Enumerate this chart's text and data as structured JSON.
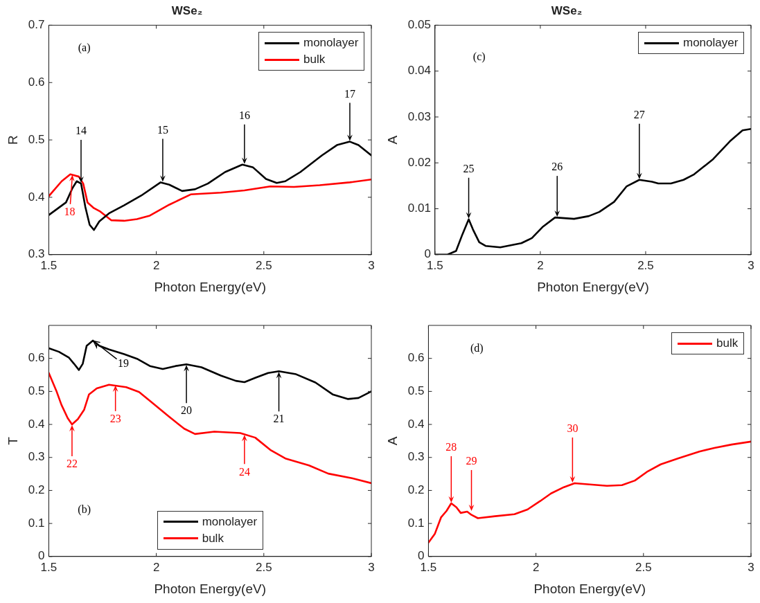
{
  "chart_data": [
    {
      "type": "line",
      "title": "WSe₂",
      "xlabel": "Photon Energy(eV)",
      "ylabel": "R",
      "xlim": [
        1.5,
        3
      ],
      "ylim": [
        0.3,
        0.7
      ],
      "xticks": [
        1.5,
        2,
        2.5,
        3
      ],
      "yticks": [
        0.3,
        0.4,
        0.5,
        0.6,
        0.7
      ],
      "legend": "top right",
      "series": [
        {
          "name": "monolayer",
          "color": "#000000",
          "x": [
            1.5,
            1.58,
            1.61,
            1.63,
            1.65,
            1.67,
            1.69,
            1.71,
            1.735,
            1.78,
            1.85,
            1.93,
            2.02,
            2.06,
            2.12,
            2.18,
            2.24,
            2.32,
            2.4,
            2.45,
            2.51,
            2.56,
            2.6,
            2.67,
            2.77,
            2.84,
            2.9,
            2.94,
            3.0
          ],
          "values": [
            0.369,
            0.391,
            0.416,
            0.428,
            0.424,
            0.383,
            0.352,
            0.343,
            0.358,
            0.372,
            0.386,
            0.403,
            0.426,
            0.422,
            0.411,
            0.414,
            0.424,
            0.444,
            0.457,
            0.452,
            0.432,
            0.425,
            0.428,
            0.444,
            0.473,
            0.491,
            0.497,
            0.491,
            0.473
          ]
        },
        {
          "name": "bulk",
          "color": "#ff0000",
          "x": [
            1.5,
            1.56,
            1.6,
            1.64,
            1.66,
            1.68,
            1.71,
            1.74,
            1.79,
            1.85,
            1.91,
            1.97,
            2.06,
            2.16,
            2.3,
            2.41,
            2.53,
            2.64,
            2.76,
            2.9,
            3.0
          ],
          "values": [
            0.402,
            0.428,
            0.44,
            0.436,
            0.424,
            0.391,
            0.381,
            0.375,
            0.36,
            0.359,
            0.362,
            0.368,
            0.387,
            0.405,
            0.408,
            0.412,
            0.419,
            0.418,
            0.421,
            0.426,
            0.431
          ]
        }
      ],
      "annotations": [
        "(a)",
        {
          "text": "14",
          "x": 1.65,
          "y": 0.424
        },
        {
          "text": "15",
          "x": 2.03,
          "y": 0.426
        },
        {
          "text": "16",
          "x": 2.41,
          "y": 0.457
        },
        {
          "text": "17",
          "x": 2.9,
          "y": 0.497
        },
        {
          "text": "18",
          "x": 1.61,
          "y": 0.44
        }
      ]
    },
    {
      "type": "line",
      "title": "WSe₂",
      "xlabel": "Photon Energy(eV)",
      "ylabel": "A",
      "xlim": [
        1.5,
        3
      ],
      "ylim": [
        0,
        0.05
      ],
      "xticks": [
        1.5,
        2,
        2.5,
        3
      ],
      "yticks": [
        0,
        0.01,
        0.02,
        0.03,
        0.04,
        0.05
      ],
      "legend": "top right",
      "series": [
        {
          "name": "monolayer",
          "color": "#000000",
          "x": [
            1.5,
            1.56,
            1.6,
            1.63,
            1.66,
            1.68,
            1.71,
            1.74,
            1.81,
            1.91,
            1.96,
            2.01,
            2.07,
            2.16,
            2.23,
            2.28,
            2.35,
            2.41,
            2.47,
            2.53,
            2.56,
            2.62,
            2.68,
            2.73,
            2.82,
            2.9,
            2.96,
            3.0
          ],
          "values": [
            0,
            0,
            0.0008,
            0.0044,
            0.0077,
            0.0055,
            0.0027,
            0.0019,
            0.0016,
            0.0025,
            0.0036,
            0.006,
            0.0081,
            0.0078,
            0.0084,
            0.0093,
            0.0115,
            0.0149,
            0.0163,
            0.0159,
            0.0155,
            0.0155,
            0.0163,
            0.0175,
            0.0208,
            0.0247,
            0.0271,
            0.0274
          ]
        }
      ],
      "annotations": [
        "(c)",
        {
          "text": "25",
          "x": 1.66,
          "y": 0.0077
        },
        {
          "text": "26",
          "x": 2.08,
          "y": 0.0081
        },
        {
          "text": "27",
          "x": 2.47,
          "y": 0.0163
        }
      ]
    },
    {
      "type": "line",
      "xlabel": "Photon Energy(eV)",
      "ylabel": "T",
      "xlim": [
        1.5,
        3
      ],
      "ylim": [
        0,
        0.7
      ],
      "xticks": [
        1.5,
        2,
        2.5,
        3
      ],
      "yticks": [
        0,
        0.1,
        0.2,
        0.3,
        0.4,
        0.5,
        0.6
      ],
      "legend": "bottom",
      "series": [
        {
          "name": "monolayer",
          "color": "#000000",
          "x": [
            1.5,
            1.547,
            1.594,
            1.617,
            1.64,
            1.658,
            1.676,
            1.705,
            1.735,
            1.78,
            1.85,
            1.91,
            1.97,
            2.03,
            2.09,
            2.14,
            2.21,
            2.3,
            2.37,
            2.41,
            2.46,
            2.52,
            2.57,
            2.65,
            2.74,
            2.82,
            2.89,
            2.94,
            3.0
          ],
          "values": [
            0.631,
            0.62,
            0.602,
            0.584,
            0.565,
            0.584,
            0.638,
            0.654,
            0.638,
            0.627,
            0.613,
            0.599,
            0.577,
            0.568,
            0.577,
            0.582,
            0.573,
            0.548,
            0.532,
            0.528,
            0.541,
            0.556,
            0.561,
            0.552,
            0.527,
            0.491,
            0.477,
            0.48,
            0.5
          ]
        },
        {
          "name": "bulk",
          "color": "#ff0000",
          "x": [
            1.5,
            1.535,
            1.559,
            1.588,
            1.608,
            1.635,
            1.664,
            1.687,
            1.723,
            1.78,
            1.86,
            1.92,
            1.98,
            2.06,
            2.13,
            2.18,
            2.27,
            2.39,
            2.46,
            2.53,
            2.6,
            2.71,
            2.8,
            2.91,
            3.0
          ],
          "values": [
            0.556,
            0.502,
            0.459,
            0.419,
            0.4,
            0.416,
            0.444,
            0.491,
            0.509,
            0.52,
            0.513,
            0.498,
            0.466,
            0.423,
            0.387,
            0.371,
            0.378,
            0.374,
            0.36,
            0.323,
            0.297,
            0.276,
            0.251,
            0.237,
            0.222
          ]
        }
      ],
      "annotations": [
        "(b)",
        {
          "text": "19",
          "x": 1.705,
          "y": 0.654
        },
        {
          "text": "20",
          "x": 2.14,
          "y": 0.582
        },
        {
          "text": "21",
          "x": 2.57,
          "y": 0.561
        },
        {
          "text": "22",
          "x": 1.608,
          "y": 0.4
        },
        {
          "text": "23",
          "x": 1.81,
          "y": 0.52
        },
        {
          "text": "24",
          "x": 2.41,
          "y": 0.37
        }
      ]
    },
    {
      "type": "line",
      "xlabel": "Photon Energy(eV)",
      "ylabel": "A",
      "xlim": [
        1.5,
        3
      ],
      "ylim": [
        0,
        0.7
      ],
      "xticks": [
        1.5,
        2,
        2.5,
        3
      ],
      "yticks": [
        0,
        0.1,
        0.2,
        0.3,
        0.4,
        0.5,
        0.6
      ],
      "legend": "top right",
      "series": [
        {
          "name": "bulk",
          "color": "#ff0000",
          "x": [
            1.5,
            1.53,
            1.559,
            1.584,
            1.606,
            1.63,
            1.65,
            1.68,
            1.7,
            1.73,
            1.81,
            1.9,
            1.96,
            2.02,
            2.07,
            2.13,
            2.18,
            2.27,
            2.33,
            2.4,
            2.46,
            2.52,
            2.58,
            2.66,
            2.76,
            2.83,
            2.91,
            3.0
          ],
          "values": [
            0.042,
            0.069,
            0.119,
            0.138,
            0.161,
            0.149,
            0.132,
            0.136,
            0.126,
            0.116,
            0.122,
            0.128,
            0.142,
            0.168,
            0.191,
            0.21,
            0.222,
            0.217,
            0.214,
            0.216,
            0.23,
            0.258,
            0.279,
            0.297,
            0.318,
            0.329,
            0.339,
            0.348
          ]
        }
      ],
      "annotations": [
        "(d)",
        {
          "text": "28",
          "x": 1.606,
          "y": 0.161
        },
        {
          "text": "29",
          "x": 1.7,
          "y": 0.136
        },
        {
          "text": "30",
          "x": 2.17,
          "y": 0.222
        }
      ]
    }
  ]
}
